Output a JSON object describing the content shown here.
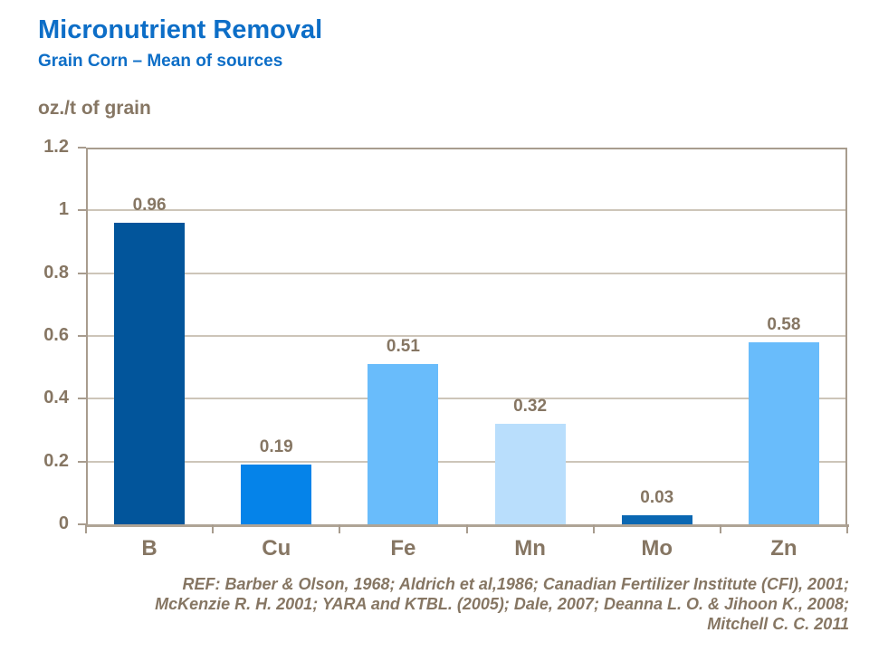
{
  "chart_data": {
    "type": "bar",
    "title": "Micronutrient Removal",
    "subtitle": "Grain Corn – Mean of sources",
    "ylabel": "oz./t of grain",
    "xlabel": "",
    "categories": [
      "B",
      "Cu",
      "Fe",
      "Mn",
      "Mo",
      "Zn"
    ],
    "values": [
      0.96,
      0.19,
      0.51,
      0.32,
      0.03,
      0.58
    ],
    "value_labels": [
      "0.96",
      "0.19",
      "0.51",
      "0.32",
      "0.03",
      "0.58"
    ],
    "bar_colors": [
      "#02559B",
      "#0583E9",
      "#69BCFB",
      "#B9DEFC",
      "#0A67B2",
      "#69BCFB"
    ],
    "ylim": [
      0,
      1.2
    ],
    "yticks": [
      "0",
      "0.2",
      "0.4",
      "0.6",
      "0.8",
      "1",
      "1.2"
    ],
    "grid": true,
    "legend": false
  },
  "footer": {
    "reference_lines": [
      "REF: Barber & Olson, 1968; Aldrich et al,1986; Canadian Fertilizer Institute (CFI), 2001;",
      "McKenzie R. H. 2001; YARA and KTBL. (2005); Dale, 2007; Deanna L. O. & Jihoon K.,  2008;",
      "Mitchell C. C. 2011"
    ]
  },
  "colors": {
    "title_blue": "#0D6EC7",
    "text_brown": "#867663",
    "gridline": "#CDC5B9",
    "axis_border": "#A89C8E"
  }
}
